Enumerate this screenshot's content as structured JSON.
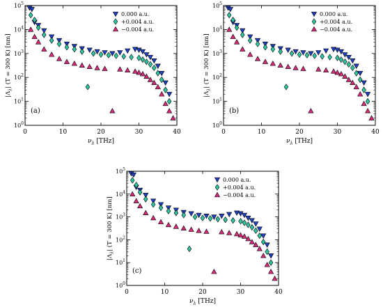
{
  "chart_data": [
    {
      "type": "scatter",
      "panel_label": "(a)",
      "xlabel": "ν_λ [THz]",
      "ylabel": "|Λ_λ| (T = 300 K) [nm]",
      "xlim": [
        0,
        40
      ],
      "ylim": [
        1,
        100000
      ],
      "yscale": "log",
      "x_ticks": [
        "0",
        "10",
        "20",
        "30",
        "40"
      ],
      "y_ticks": [
        "10^0",
        "10^1",
        "10^2",
        "10^3",
        "10^4",
        "10^5"
      ],
      "legend_position": "top-right",
      "grid": false,
      "series": [
        {
          "name": "0.000 a.u.",
          "marker": "triangle-down",
          "color": "#1f3fbf",
          "x": [
            1.2,
            1.8,
            2.5,
            3.5,
            5,
            7,
            9,
            11,
            13,
            15,
            17,
            19,
            21,
            23,
            25,
            27,
            29,
            30,
            31,
            32,
            33,
            34,
            35,
            36,
            37,
            38
          ],
          "y": [
            80000,
            70000,
            20000,
            15000,
            9000,
            5000,
            3500,
            2500,
            2000,
            1600,
            1400,
            1200,
            1100,
            1000,
            1100,
            1300,
            1500,
            1400,
            1200,
            900,
            700,
            500,
            300,
            150,
            60,
            20
          ]
        },
        {
          "name": "+0.004 a.u.",
          "marker": "diamond",
          "color": "#2ec4a0",
          "x": [
            1.5,
            2.5,
            3.5,
            5,
            7,
            9,
            11,
            13,
            15,
            16.5,
            18,
            20,
            22,
            24,
            26,
            28,
            30,
            31,
            32,
            33,
            34,
            35,
            36,
            37,
            38
          ],
          "y": [
            40000,
            25000,
            12000,
            6000,
            3500,
            2500,
            1800,
            1500,
            1200,
            40,
            1000,
            900,
            850,
            800,
            750,
            700,
            650,
            550,
            450,
            350,
            250,
            150,
            80,
            30,
            10
          ]
        },
        {
          "name": "−0.004 a.u.",
          "marker": "triangle-up",
          "color": "#d42a7a",
          "x": [
            1.5,
            2.5,
            3.5,
            5,
            7,
            9,
            11,
            13,
            15,
            17,
            19,
            21,
            23,
            25,
            27,
            29,
            30,
            31,
            32,
            33,
            34,
            35,
            36,
            37,
            38,
            39
          ],
          "y": [
            10000,
            5000,
            3000,
            1500,
            900,
            600,
            450,
            380,
            320,
            280,
            250,
            230,
            4,
            220,
            200,
            180,
            160,
            140,
            110,
            80,
            60,
            40,
            20,
            8,
            4,
            2
          ]
        }
      ]
    },
    {
      "type": "scatter",
      "panel_label": "(b)",
      "xlabel": "ν_λ [THz]",
      "ylabel": "|Λ_λ| (T = 300 K) [nm]",
      "xlim": [
        0,
        40
      ],
      "ylim": [
        1,
        100000
      ],
      "yscale": "log",
      "x_ticks": [
        "0",
        "10",
        "20",
        "30",
        "40"
      ],
      "y_ticks": [
        "10^0",
        "10^1",
        "10^2",
        "10^3",
        "10^4",
        "10^5"
      ],
      "legend_position": "top-right",
      "grid": false,
      "series": [
        {
          "name": "0.000 a.u.",
          "marker": "triangle-down",
          "color": "#1f3fbf",
          "x": [
            1.2,
            1.8,
            2.5,
            3.5,
            5,
            7,
            9,
            11,
            13,
            15,
            17,
            19,
            21,
            23,
            25,
            27,
            29,
            30,
            31,
            32,
            33,
            34,
            35,
            36,
            37,
            38
          ],
          "y": [
            80000,
            70000,
            20000,
            15000,
            9000,
            5000,
            3500,
            2500,
            2000,
            1600,
            1400,
            1200,
            1100,
            1000,
            1100,
            1300,
            1500,
            1400,
            1200,
            900,
            700,
            500,
            300,
            150,
            60,
            20
          ]
        },
        {
          "name": "+0.004 a.u.",
          "marker": "diamond",
          "color": "#2ec4a0",
          "x": [
            1.5,
            2.5,
            3.5,
            5,
            7,
            9,
            11,
            13,
            15,
            16.5,
            18,
            20,
            22,
            24,
            26,
            28,
            30,
            31,
            32,
            33,
            34,
            35,
            36,
            37,
            38
          ],
          "y": [
            40000,
            25000,
            12000,
            6000,
            3500,
            2500,
            1800,
            1500,
            1200,
            40,
            1000,
            900,
            850,
            800,
            750,
            700,
            650,
            550,
            450,
            350,
            250,
            150,
            80,
            30,
            10
          ]
        },
        {
          "name": "−0.004 a.u.",
          "marker": "triangle-up",
          "color": "#d42a7a",
          "x": [
            1.5,
            2.5,
            3.5,
            5,
            7,
            9,
            11,
            13,
            15,
            17,
            19,
            21,
            23,
            25,
            27,
            29,
            30,
            31,
            32,
            33,
            34,
            35,
            36,
            37,
            38,
            39
          ],
          "y": [
            10000,
            5000,
            3000,
            1500,
            900,
            600,
            450,
            380,
            320,
            280,
            250,
            230,
            4,
            220,
            200,
            180,
            160,
            140,
            110,
            80,
            60,
            40,
            20,
            8,
            4,
            2
          ]
        }
      ]
    },
    {
      "type": "scatter",
      "panel_label": "(c)",
      "xlabel": "ν_λ [THz]",
      "ylabel": "|Λ_λ| (T = 300 K) [nm]",
      "xlim": [
        0,
        40
      ],
      "ylim": [
        1,
        100000
      ],
      "yscale": "log",
      "x_ticks": [
        "0",
        "10",
        "20",
        "30",
        "40"
      ],
      "y_ticks": [
        "10^0",
        "10^1",
        "10^2",
        "10^3",
        "10^4",
        "10^5"
      ],
      "legend_position": "top-right",
      "grid": false,
      "series": [
        {
          "name": "0.000 a.u.",
          "marker": "triangle-down",
          "color": "#1f3fbf",
          "x": [
            1.2,
            1.8,
            2.5,
            3.5,
            5,
            7,
            9,
            11,
            13,
            15,
            17,
            19,
            21,
            23,
            25,
            27,
            29,
            30,
            31,
            32,
            33,
            34,
            35,
            36,
            37,
            38
          ],
          "y": [
            80000,
            70000,
            20000,
            15000,
            9000,
            5000,
            3500,
            2500,
            2000,
            1600,
            1400,
            1200,
            1100,
            1000,
            1100,
            1300,
            1500,
            1400,
            1200,
            900,
            700,
            500,
            300,
            150,
            60,
            20
          ]
        },
        {
          "name": "+0.004 a.u.",
          "marker": "diamond",
          "color": "#2ec4a0",
          "x": [
            1.5,
            2.5,
            3.5,
            5,
            7,
            9,
            11,
            13,
            15,
            16.5,
            18,
            20,
            22,
            24,
            26,
            28,
            30,
            31,
            32,
            33,
            34,
            35,
            36,
            37,
            38
          ],
          "y": [
            40000,
            25000,
            12000,
            6000,
            3500,
            2500,
            1800,
            1500,
            1200,
            40,
            1000,
            900,
            850,
            800,
            750,
            700,
            650,
            550,
            450,
            350,
            250,
            150,
            80,
            30,
            10
          ]
        },
        {
          "name": "−0.004 a.u.",
          "marker": "triangle-up",
          "color": "#d42a7a",
          "x": [
            1.5,
            2.5,
            3.5,
            5,
            7,
            9,
            11,
            13,
            15,
            17,
            19,
            21,
            23,
            25,
            27,
            29,
            30,
            31,
            32,
            33,
            34,
            35,
            36,
            37,
            38,
            39
          ],
          "y": [
            10000,
            5000,
            3000,
            1500,
            900,
            600,
            450,
            380,
            320,
            280,
            250,
            230,
            4,
            220,
            200,
            180,
            160,
            140,
            110,
            80,
            60,
            40,
            20,
            8,
            4,
            2
          ]
        }
      ]
    }
  ]
}
